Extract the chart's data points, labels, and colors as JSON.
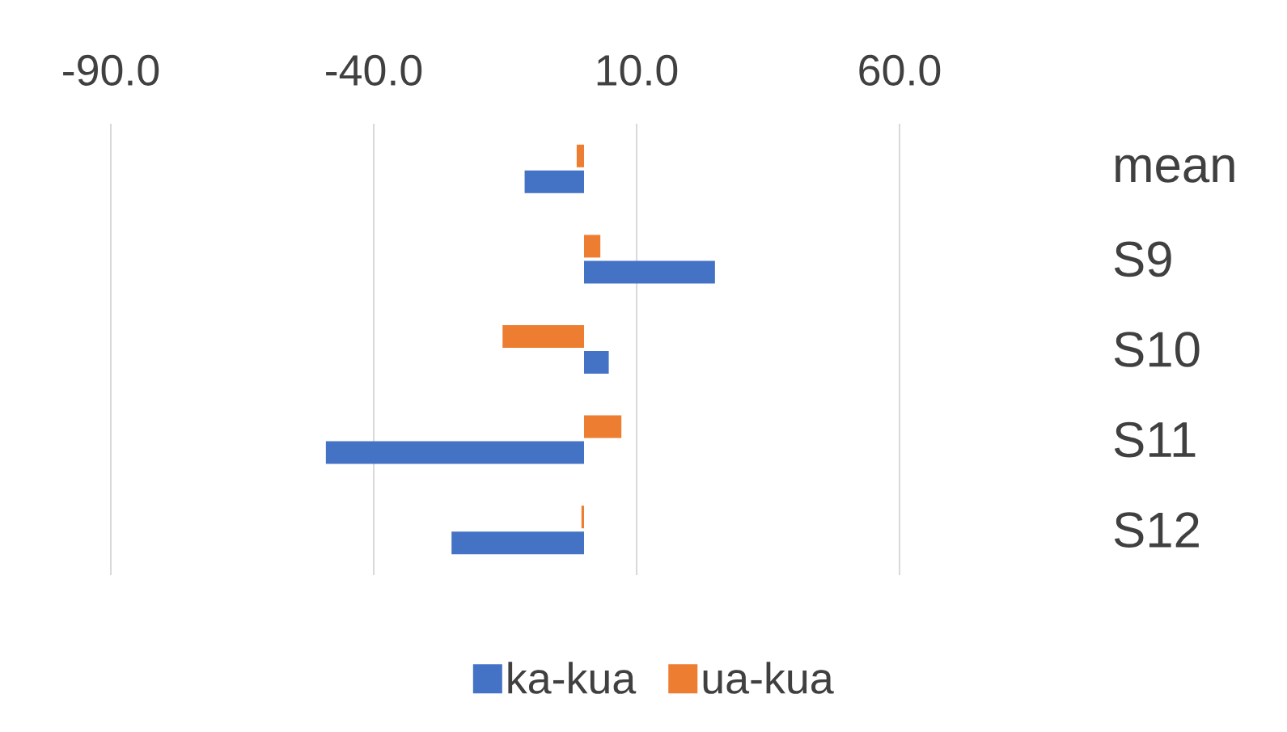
{
  "chart_data": {
    "type": "bar",
    "orientation": "horizontal",
    "categories": [
      "mean",
      "S9",
      "S10",
      "S11",
      "S12"
    ],
    "series": [
      {
        "name": "ka-kua",
        "color": "#4472c4",
        "values": [
          -11.3,
          24.9,
          4.7,
          -49.1,
          -25.2
        ]
      },
      {
        "name": "ua-kua",
        "color": "#ed7d31",
        "values": [
          -1.4,
          3.1,
          -15.5,
          7.1,
          -0.5
        ]
      }
    ],
    "xlim": [
      -90,
      60
    ],
    "xticks": [
      {
        "value": -90,
        "label": "-90.0"
      },
      {
        "value": -40,
        "label": "-40.0"
      },
      {
        "value": 10,
        "label": "10.0"
      },
      {
        "value": 60,
        "label": "60.0"
      }
    ],
    "grid": "x",
    "legend": "bottom"
  }
}
